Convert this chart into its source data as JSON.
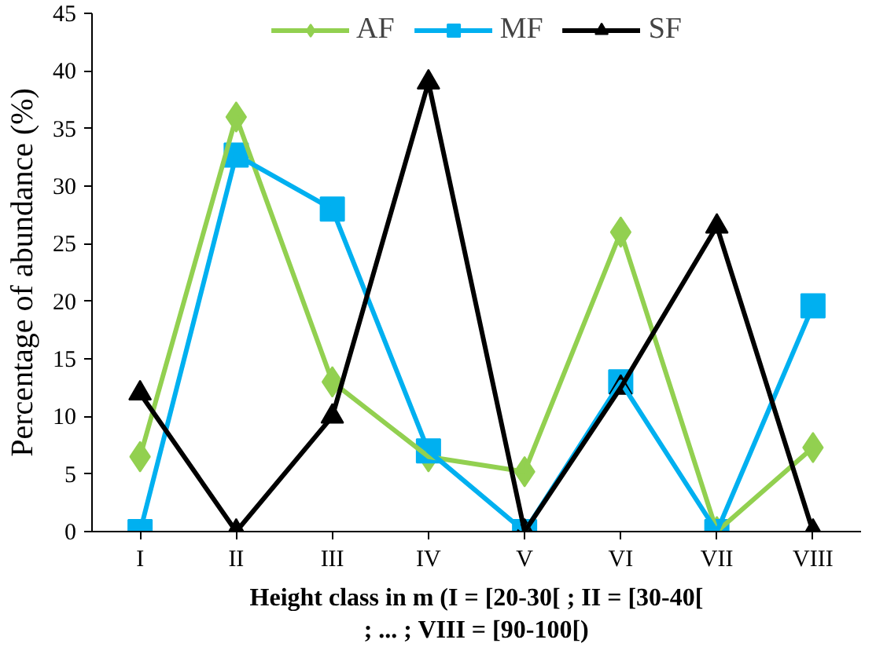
{
  "chart_data": {
    "type": "line",
    "xlabel": "Height class in m (I = [20-30[ ; II = [30-40[\n; ... ; VIII = [90-100[)",
    "ylabel": "Percentage of abundance (%)",
    "categories": [
      "I",
      "II",
      "III",
      "IV",
      "V",
      "VI",
      "VII",
      "VIII"
    ],
    "series": [
      {
        "name": "AF",
        "color": "#92d050",
        "marker": "diamond",
        "values": [
          6.5,
          36,
          13,
          6.5,
          5.2,
          26,
          0,
          7.3
        ]
      },
      {
        "name": "MF",
        "color": "#00b0f0",
        "marker": "square",
        "values": [
          0,
          32.7,
          28,
          7,
          0,
          13,
          0,
          19.6
        ]
      },
      {
        "name": "SF",
        "color": "#000000",
        "marker": "triangle",
        "values": [
          12,
          0,
          10,
          39,
          0,
          12.5,
          26.5,
          0
        ]
      }
    ],
    "ylim": [
      0,
      45
    ],
    "yticks": [
      0,
      5,
      10,
      15,
      20,
      25,
      30,
      35,
      40,
      45
    ],
    "grid": false,
    "legend": "top",
    "line_style": "solid"
  }
}
